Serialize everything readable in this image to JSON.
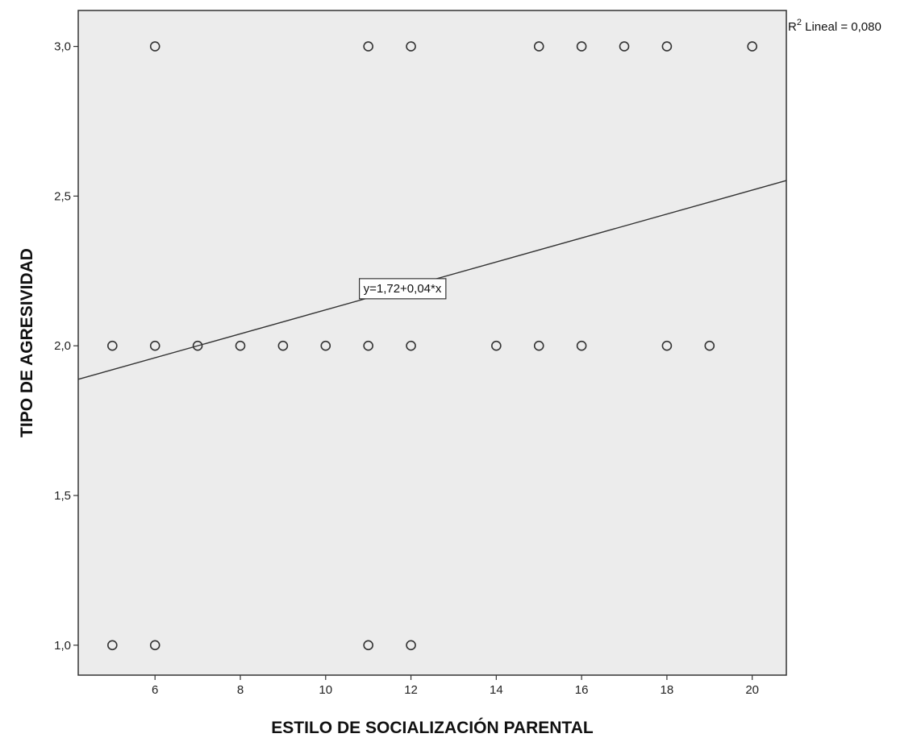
{
  "colors": {
    "plot_background": "#ececec",
    "frame": "#333333",
    "marker_stroke": "#333333",
    "fit_line": "#333333"
  },
  "chart_data": {
    "type": "scatter",
    "xlabel": "ESTILO DE SOCIALIZACIÓN PARENTAL",
    "ylabel": "TIPO DE AGRESIVIDAD",
    "xlim": [
      4.2,
      20.8
    ],
    "ylim": [
      0.9,
      3.12
    ],
    "x_ticks": [
      6,
      8,
      10,
      12,
      14,
      16,
      18,
      20
    ],
    "x_tick_labels": [
      "6",
      "8",
      "10",
      "12",
      "14",
      "16",
      "18",
      "20"
    ],
    "y_ticks": [
      1.0,
      1.5,
      2.0,
      2.5,
      3.0
    ],
    "y_tick_labels": [
      "1,0",
      "1,5",
      "2,0",
      "2,5",
      "3,0"
    ],
    "grid": false,
    "marker": "open-circle",
    "points": [
      {
        "x": 6,
        "y": 3
      },
      {
        "x": 11,
        "y": 3
      },
      {
        "x": 12,
        "y": 3
      },
      {
        "x": 15,
        "y": 3
      },
      {
        "x": 16,
        "y": 3
      },
      {
        "x": 17,
        "y": 3
      },
      {
        "x": 18,
        "y": 3
      },
      {
        "x": 20,
        "y": 3
      },
      {
        "x": 5,
        "y": 2
      },
      {
        "x": 6,
        "y": 2
      },
      {
        "x": 7,
        "y": 2
      },
      {
        "x": 8,
        "y": 2
      },
      {
        "x": 9,
        "y": 2
      },
      {
        "x": 10,
        "y": 2
      },
      {
        "x": 11,
        "y": 2
      },
      {
        "x": 12,
        "y": 2
      },
      {
        "x": 14,
        "y": 2
      },
      {
        "x": 15,
        "y": 2
      },
      {
        "x": 16,
        "y": 2
      },
      {
        "x": 18,
        "y": 2
      },
      {
        "x": 19,
        "y": 2
      },
      {
        "x": 5,
        "y": 1
      },
      {
        "x": 6,
        "y": 1
      },
      {
        "x": 11,
        "y": 1
      },
      {
        "x": 12,
        "y": 1
      }
    ],
    "fit_line": {
      "intercept": 1.72,
      "slope": 0.04,
      "equation_label": "y=1,72+0,04*x",
      "label_anchor_x": 11.8
    },
    "r_squared_label": {
      "prefix": "R",
      "superscript": "2",
      "text": " Lineal = 0,080"
    }
  }
}
